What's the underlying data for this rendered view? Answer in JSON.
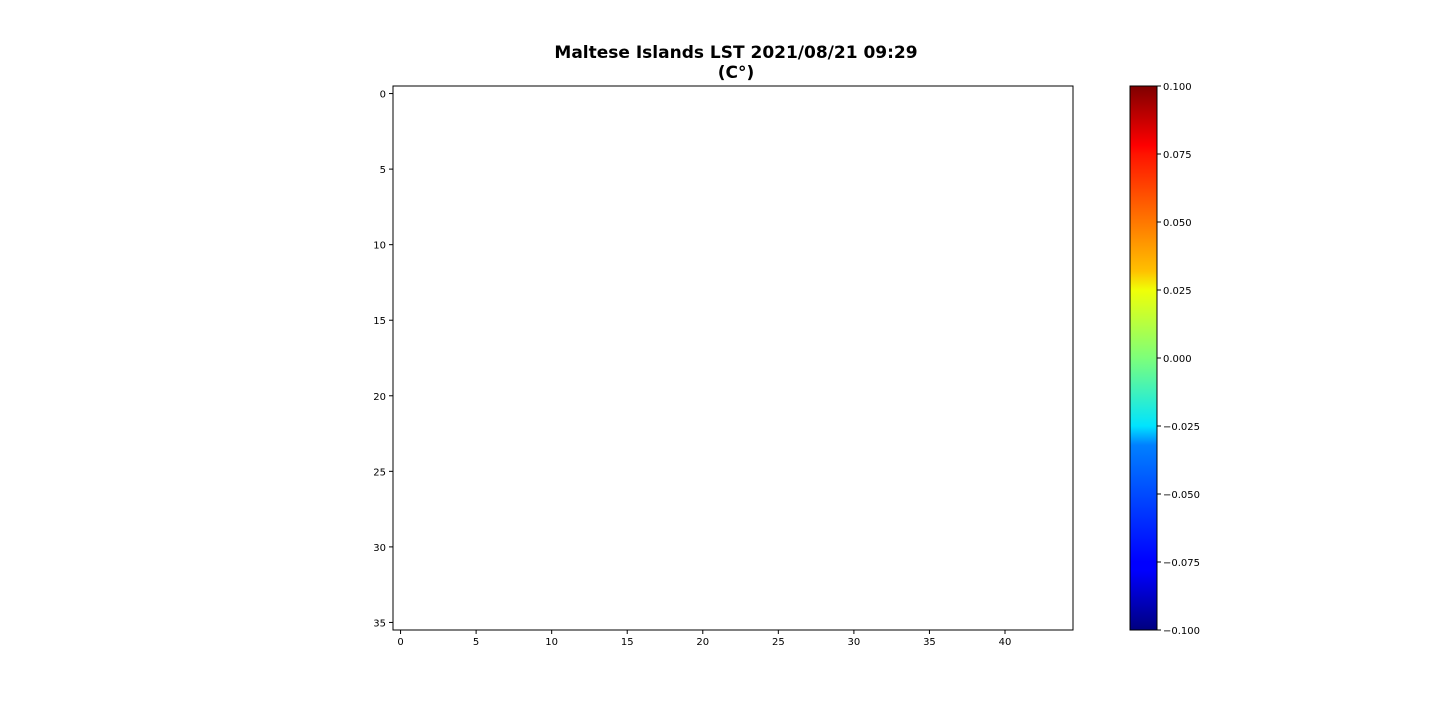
{
  "chart_data": {
    "type": "heatmap",
    "title": "Maltese Islands LST 2021/08/21 09:29",
    "subtitle": "(C°)",
    "xlabel": "",
    "ylabel": "",
    "xlim": [
      -0.5,
      44.5
    ],
    "ylim": [
      35.5,
      -0.5
    ],
    "x_ticks": [
      0,
      5,
      10,
      15,
      20,
      25,
      30,
      35,
      40
    ],
    "y_ticks": [
      0,
      5,
      10,
      15,
      20,
      25,
      30,
      35
    ],
    "grid": false,
    "values": "empty (no data plotted)",
    "colorbar": {
      "colormap": "jet",
      "range": [
        -0.1,
        0.1
      ],
      "ticks": [
        0.1,
        0.075,
        0.05,
        0.025,
        0.0,
        -0.025,
        -0.05,
        -0.075,
        -0.1
      ],
      "tick_labels": [
        "0.100",
        "0.075",
        "0.050",
        "0.025",
        "0.000",
        "−0.025",
        "−0.050",
        "−0.075",
        "−0.100"
      ],
      "placement": "right"
    }
  }
}
